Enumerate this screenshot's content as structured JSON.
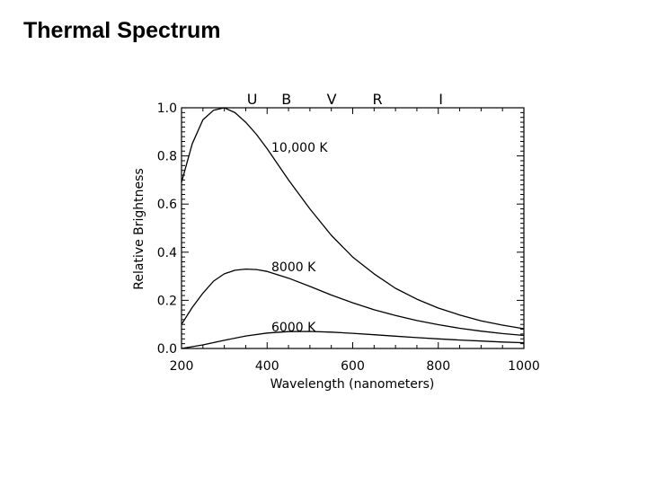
{
  "page": {
    "title": "Thermal Spectrum"
  },
  "chart_data": {
    "type": "line",
    "title": "",
    "xlabel": "Wavelength (nanometers)",
    "ylabel": "Relative Brightness",
    "xlim": [
      200,
      1000
    ],
    "ylim": [
      0,
      1.0
    ],
    "xticks": [
      "200",
      "400",
      "600",
      "800",
      "1000"
    ],
    "yticks": [
      "0.0",
      "0.2",
      "0.4",
      "0.6",
      "0.8",
      "1.0"
    ],
    "xtick_values": [
      200,
      400,
      600,
      800,
      1000
    ],
    "ytick_values": [
      0,
      0.2,
      0.4,
      0.6,
      0.8,
      1.0
    ],
    "grid": false,
    "band_labels": [
      {
        "text": "U",
        "x": 365
      },
      {
        "text": "B",
        "x": 445
      },
      {
        "text": "V",
        "x": 551
      },
      {
        "text": "R",
        "x": 658
      },
      {
        "text": "I",
        "x": 806
      }
    ],
    "series": [
      {
        "name": "10,000 K",
        "x": [
          200,
          225,
          250,
          275,
          300,
          325,
          350,
          375,
          400,
          450,
          500,
          550,
          600,
          650,
          700,
          750,
          800,
          850,
          900,
          950,
          1000
        ],
        "y": [
          0.69,
          0.85,
          0.95,
          0.99,
          1.0,
          0.98,
          0.94,
          0.89,
          0.83,
          0.7,
          0.58,
          0.47,
          0.38,
          0.31,
          0.25,
          0.205,
          0.168,
          0.139,
          0.115,
          0.097,
          0.082
        ]
      },
      {
        "name": "8000 K",
        "x": [
          200,
          225,
          250,
          275,
          300,
          325,
          350,
          375,
          400,
          450,
          500,
          550,
          600,
          650,
          700,
          750,
          800,
          850,
          900,
          950,
          1000
        ],
        "y": [
          0.1,
          0.17,
          0.23,
          0.28,
          0.31,
          0.325,
          0.33,
          0.328,
          0.32,
          0.292,
          0.258,
          0.222,
          0.19,
          0.161,
          0.137,
          0.116,
          0.099,
          0.084,
          0.072,
          0.062,
          0.054
        ]
      },
      {
        "name": "6000 K",
        "x": [
          200,
          250,
          300,
          350,
          400,
          450,
          500,
          550,
          600,
          650,
          700,
          750,
          800,
          850,
          900,
          950,
          1000
        ],
        "y": [
          0.0,
          0.015,
          0.034,
          0.052,
          0.064,
          0.07,
          0.071,
          0.068,
          0.063,
          0.057,
          0.051,
          0.045,
          0.04,
          0.035,
          0.031,
          0.027,
          0.024
        ]
      }
    ],
    "curve_labels": [
      {
        "text": "10,000 K",
        "x": 410,
        "y": 0.835
      },
      {
        "text": "8000 K",
        "x": 410,
        "y": 0.34
      },
      {
        "text": "6000 K",
        "x": 410,
        "y": 0.09
      }
    ]
  }
}
